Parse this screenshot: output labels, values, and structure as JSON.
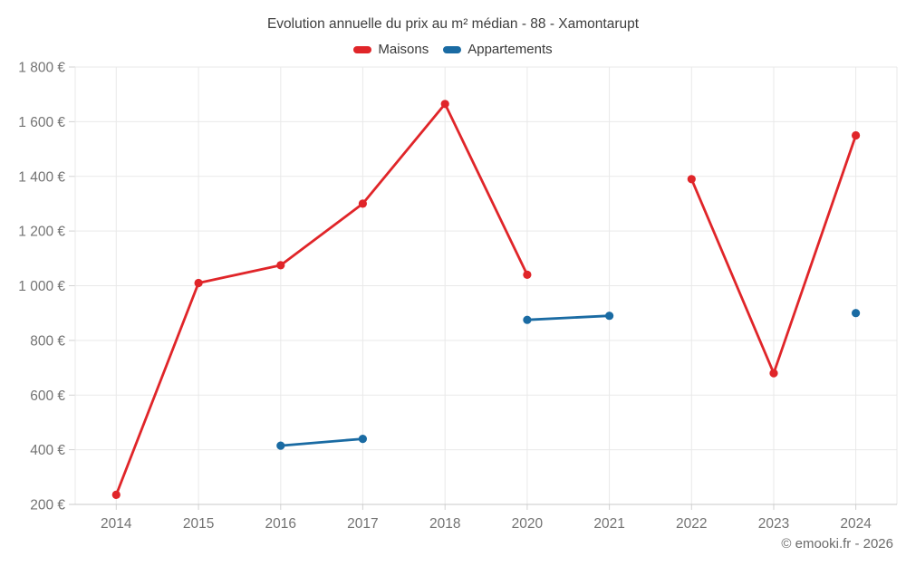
{
  "header": {
    "title": "Evolution annuelle du prix au m² médian - 88 - Xamontarupt"
  },
  "legend": {
    "items": [
      {
        "label": "Maisons",
        "color": "#e02529"
      },
      {
        "label": "Appartements",
        "color": "#1a6ba3"
      }
    ]
  },
  "footer": {
    "credit": "© emooki.fr - 2026"
  },
  "chart_data": {
    "type": "line",
    "title": "Evolution annuelle du prix au m² médian - 88 - Xamontarupt",
    "xlabel": "",
    "ylabel": "",
    "categories": [
      "2014",
      "2015",
      "2016",
      "2017",
      "2018",
      "2020",
      "2021",
      "2022",
      "2023",
      "2024"
    ],
    "series": [
      {
        "name": "Maisons",
        "color": "#e02529",
        "values": [
          235,
          1010,
          1075,
          1300,
          1665,
          1040,
          null,
          1390,
          680,
          1550
        ]
      },
      {
        "name": "Appartements",
        "color": "#1a6ba3",
        "values": [
          null,
          null,
          415,
          440,
          null,
          875,
          890,
          null,
          null,
          900
        ]
      }
    ],
    "ylim": [
      200,
      1800
    ],
    "ytick_values": [
      200,
      400,
      600,
      800,
      1000,
      1200,
      1400,
      1600,
      1800
    ],
    "ytick_labels": [
      "200 €",
      "400 €",
      "600 €",
      "800 €",
      "1 000 €",
      "1 200 €",
      "1 400 €",
      "1 600 €",
      "1 800 €"
    ],
    "grid": true,
    "legend_position": "top",
    "gap_note": "no data for 2019 (category absent); Maisons has a gap at 2021; Appartements has points only for 2016, 2017, 2020, 2021 and an isolated point at 2024"
  }
}
